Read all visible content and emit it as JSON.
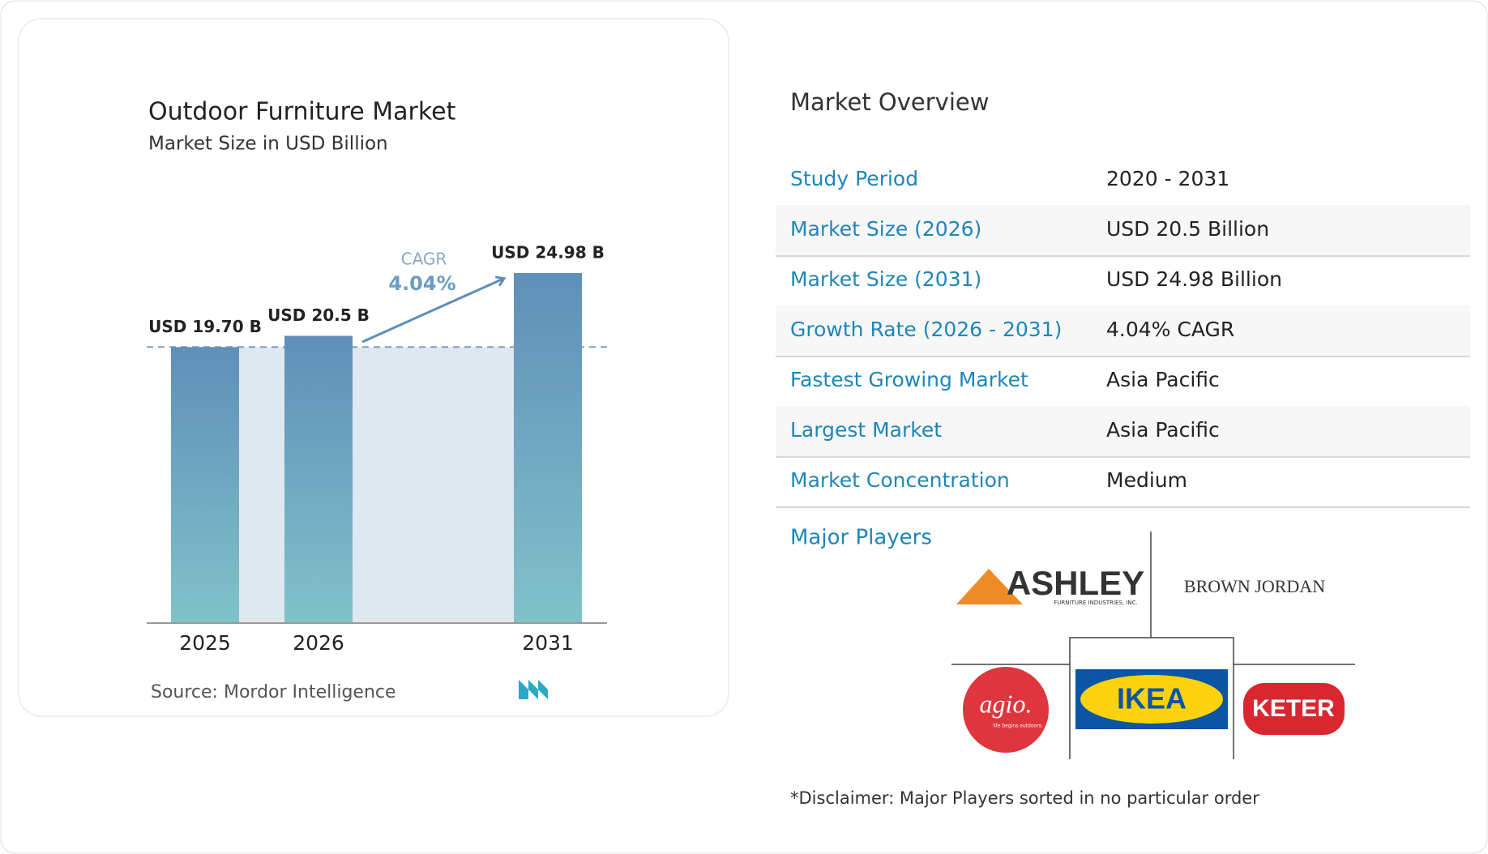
{
  "chart_data": {
    "type": "bar",
    "title": "Outdoor Furniture Market",
    "subtitle": "Market Size in USD Billion",
    "categories": [
      "2025",
      "2026",
      "2031"
    ],
    "values": [
      19.7,
      20.5,
      24.98
    ],
    "value_labels": [
      "USD 19.70 B",
      "USD 20.5 B",
      "USD 24.98 B"
    ],
    "annotation": {
      "label": "CAGR",
      "value": "4.04%"
    },
    "source": "Source:  Mordor Intelligence"
  },
  "overview": {
    "title": "Market Overview",
    "rows": [
      [
        "Study Period",
        "2020 - 2031"
      ],
      [
        "Market Size (2026)",
        "USD 20.5 Billion"
      ],
      [
        "Market Size (2031)",
        "USD 24.98 Billion"
      ],
      [
        "Growth Rate (2026 - 2031)",
        "4.04% CAGR"
      ],
      [
        "Fastest Growing Market",
        "Asia Pacific"
      ],
      [
        "Largest Market",
        "Asia Pacific"
      ],
      [
        "Market Concentration",
        "Medium"
      ]
    ],
    "major_players_label": "Major Players",
    "players": {
      "ashley": "ASHLEY",
      "ashley_sub": "FURNITURE INDUSTRIES, INC.",
      "brown_jordan": "BROWN JORDAN",
      "agio": "agio.",
      "agio_sub": "life begins outdoors.",
      "ikea": "IKEA",
      "keter": "KETER"
    },
    "disclaimer": "*Disclaimer: Major Players sorted in no particular order"
  }
}
